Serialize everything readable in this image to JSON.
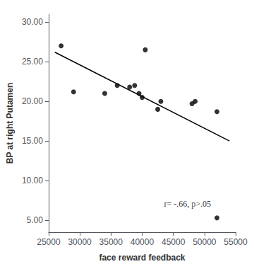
{
  "chart_data": {
    "type": "scatter",
    "xlabel": "face reward feedback",
    "ylabel": "BP at right Putamen",
    "series": [
      {
        "type": "line",
        "color": "black",
        "x": [
          26000,
          54000
        ],
        "values": [
          26.2,
          15.0
        ]
      },
      {
        "type": "scatter",
        "color": "black",
        "x": [
          27000,
          29000,
          34000,
          36000,
          38000,
          38800,
          39500,
          40000,
          40500,
          42500,
          43000,
          48000,
          48500,
          52000,
          52000
        ],
        "values": [
          27.0,
          21.2,
          21.0,
          22.0,
          21.8,
          22.0,
          21.0,
          20.5,
          26.5,
          19.0,
          20.0,
          19.7,
          20.0,
          18.7,
          5.3
        ]
      }
    ],
    "annotations": [
      {
        "text": "r= -.66, p>.05",
        "x": 43500,
        "y": 6.5
      }
    ],
    "xlim": [
      25000,
      55000
    ],
    "ylim": [
      3.5,
      31.0
    ],
    "xticks": [
      25000,
      30000,
      35000,
      40000,
      45000,
      50000,
      55000
    ],
    "yticks": [
      {
        "value": 5.0,
        "label": "5.00"
      },
      {
        "value": 10.0,
        "label": "10.00"
      },
      {
        "value": 15.0,
        "label": "15.00"
      },
      {
        "value": 20.0,
        "label": "20.00"
      },
      {
        "value": 25.0,
        "label": "25.00"
      },
      {
        "value": 30.0,
        "label": "30.00"
      }
    ],
    "grid": false
  }
}
